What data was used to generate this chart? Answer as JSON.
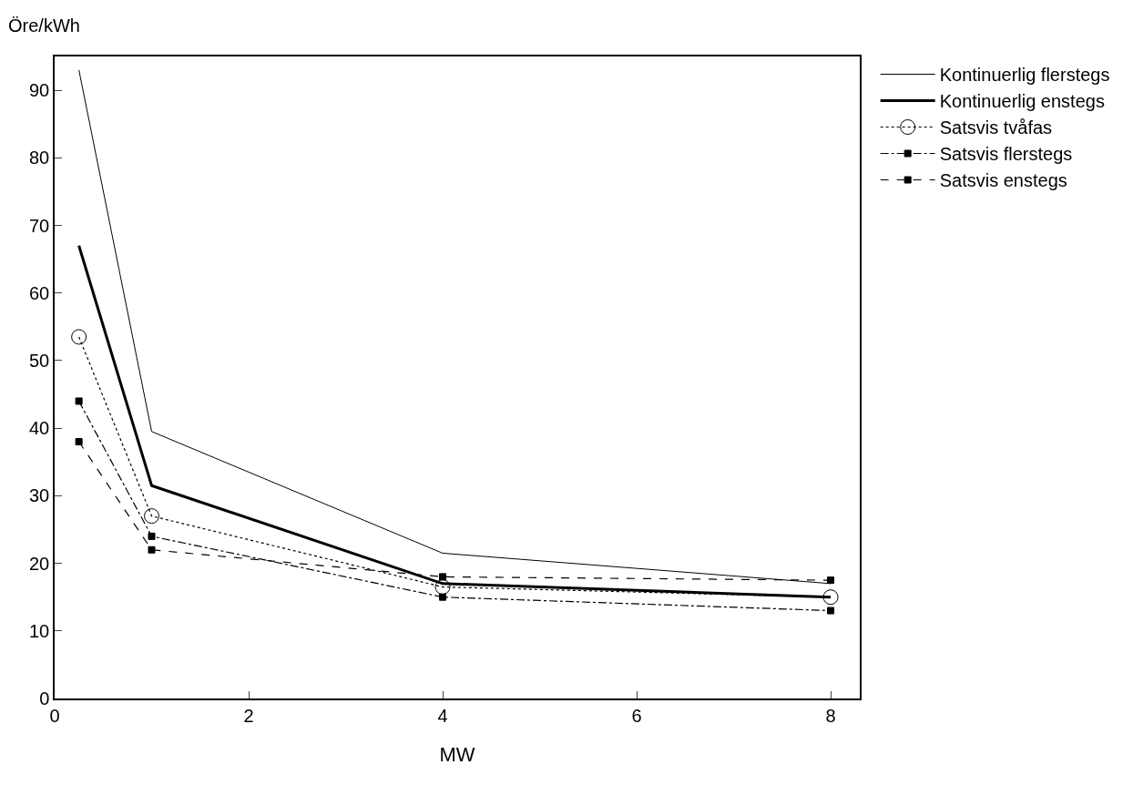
{
  "chart_data": {
    "type": "line",
    "xlabel": "MW",
    "ylabel": "Öre/kWh",
    "x": [
      0.25,
      1,
      4,
      8
    ],
    "series": [
      {
        "name": "Kontinuerlig flerstegs",
        "color": "#000000",
        "values": [
          93,
          39.5,
          21.5,
          17
        ],
        "marker": "none",
        "line_style": "solid"
      },
      {
        "name": "Kontinuerlig enstegs",
        "color": "#000000",
        "values": [
          67,
          31.5,
          17,
          15
        ],
        "marker": "none",
        "line_style": "solid"
      },
      {
        "name": "Satsvis tvåfas",
        "color": "#000000",
        "values": [
          53.5,
          27,
          16.5,
          15
        ],
        "marker": "circle",
        "line_style": "dotted"
      },
      {
        "name": "Satsvis flerstegs",
        "color": "#000000",
        "values": [
          44,
          24,
          15,
          13
        ],
        "marker": "square",
        "line_style": "dashdot"
      },
      {
        "name": "Satsvis enstegs",
        "color": "#000000",
        "values": [
          38,
          22,
          18,
          17.5
        ],
        "marker": "square",
        "line_style": "dashed"
      }
    ],
    "xlim": [
      0,
      8.3
    ],
    "xticks": [
      0,
      2,
      4,
      6,
      8
    ],
    "ylim": [
      0,
      95
    ],
    "yticks": [
      0,
      10,
      20,
      30,
      40,
      50,
      60,
      70,
      80,
      90
    ],
    "grid": false,
    "legend": "right"
  }
}
